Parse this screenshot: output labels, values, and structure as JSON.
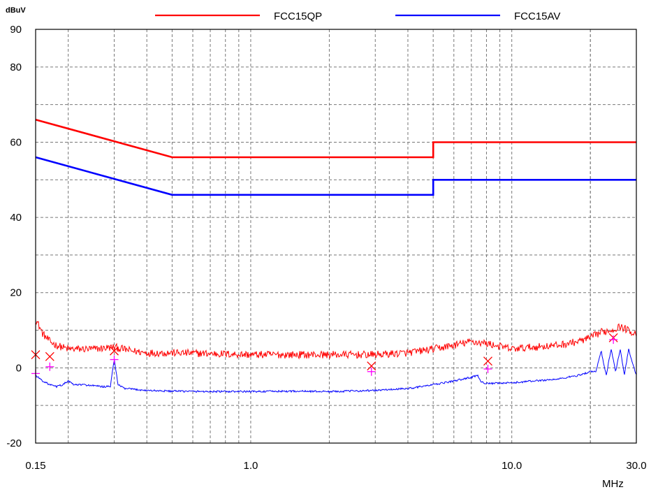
{
  "chart_data": {
    "type": "line",
    "ylabel": "dBuV",
    "xlabel": "MHz",
    "x_scale": "log",
    "xlim": [
      0.15,
      30.0
    ],
    "ylim": [
      -20,
      90
    ],
    "grid": true,
    "legend_position": "top",
    "x_tick_labels": [
      {
        "value": 0.15,
        "label": "0.15"
      },
      {
        "value": 1.0,
        "label": "1.0"
      },
      {
        "value": 10.0,
        "label": "10.0"
      },
      {
        "value": 30.0,
        "label": "30.0"
      }
    ],
    "y_ticks": [
      90,
      80,
      60,
      40,
      20,
      0,
      -20
    ],
    "series": [
      {
        "name": "FCC15QP",
        "color": "#ff0000",
        "x": [
          0.15,
          0.5,
          0.5,
          5.0,
          5.0,
          30.0
        ],
        "y": [
          66,
          56,
          56,
          56,
          60,
          60
        ]
      },
      {
        "name": "FCC15AV",
        "color": "#0000ff",
        "x": [
          0.15,
          0.5,
          0.5,
          5.0,
          5.0,
          30.0
        ],
        "y": [
          56,
          46,
          46,
          46,
          50,
          50
        ]
      }
    ],
    "measured_traces": [
      {
        "color": "#ff0000",
        "x": [
          0.15,
          0.155,
          0.16,
          0.17,
          0.18,
          0.2,
          0.25,
          0.3,
          0.35,
          0.4,
          0.5,
          0.7,
          1.0,
          1.5,
          2.0,
          3.0,
          4.0,
          5.0,
          6.0,
          7.0,
          8.0,
          10.0,
          12.0,
          15.0,
          18.0,
          20.0,
          22.0,
          24.0,
          26.0,
          28.0,
          30.0
        ],
        "y": [
          13,
          11,
          9,
          7,
          6,
          5,
          5,
          5.5,
          4.5,
          4,
          4,
          3.8,
          3.5,
          3.5,
          3.5,
          3.5,
          4,
          5,
          6,
          7,
          6.5,
          5,
          5.5,
          6,
          7,
          8,
          9.5,
          10,
          11,
          10,
          9
        ]
      },
      {
        "color": "#0000ff",
        "x": [
          0.15,
          0.16,
          0.17,
          0.18,
          0.19,
          0.2,
          0.21,
          0.23,
          0.27,
          0.29,
          0.3,
          0.31,
          0.33,
          0.4,
          0.5,
          0.7,
          1.0,
          1.5,
          2.0,
          3.0,
          4.0,
          5.0,
          6.0,
          7.0,
          7.4,
          7.6,
          8.0,
          10.0,
          12.0,
          15.0,
          18.0,
          20.0,
          21.0,
          22.0,
          23.0,
          24.0,
          25.0,
          26.0,
          27.0,
          28.0,
          30.0
        ],
        "y": [
          -2,
          -3.5,
          -4.5,
          -5,
          -4.5,
          -3.5,
          -4.5,
          -4.5,
          -5,
          -5,
          2.5,
          -4.5,
          -5.5,
          -6,
          -6.2,
          -6.3,
          -6.3,
          -6.2,
          -6.3,
          -6,
          -5.5,
          -4.5,
          -3.5,
          -2.5,
          -2,
          -3.5,
          -4.2,
          -4,
          -3.5,
          -3,
          -2,
          -1,
          -1,
          4.5,
          -2,
          5,
          -1,
          5,
          -2,
          5,
          -2
        ]
      }
    ],
    "markers": [
      {
        "type": "x",
        "color": "#ff0000",
        "x": [
          0.15,
          0.17,
          0.3,
          2.9,
          8.1,
          24.5
        ],
        "y": [
          3.5,
          3,
          4.5,
          0.5,
          1.8,
          8
        ]
      },
      {
        "type": "plus",
        "color": "#ff00ff",
        "x": [
          0.15,
          0.17,
          0.3,
          2.9,
          8.1,
          24.5
        ],
        "y": [
          -1.5,
          0.3,
          2.2,
          -1,
          -0.3,
          7.5
        ]
      }
    ]
  }
}
